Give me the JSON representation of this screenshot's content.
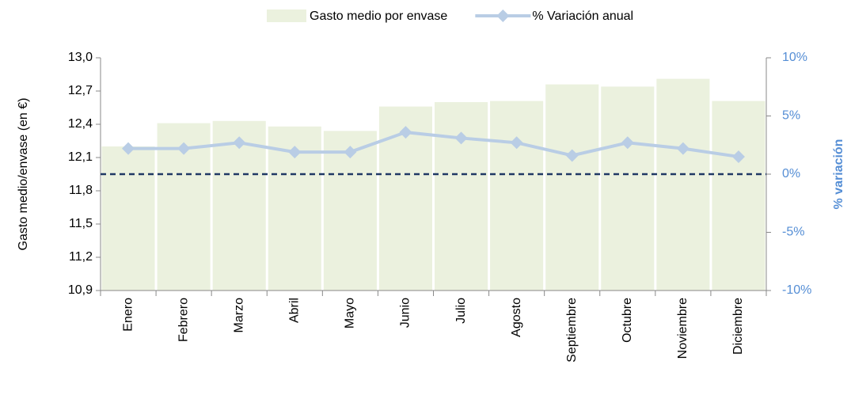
{
  "chart_data": {
    "type": "bar-line",
    "categories": [
      "Enero",
      "Febrero",
      "Marzo",
      "Abril",
      "Mayo",
      "Junio",
      "Julio",
      "Agosto",
      "Septiembre",
      "Octubre",
      "Noviembre",
      "Diciembre"
    ],
    "series": [
      {
        "name": "Gasto medio por envase",
        "type": "bar",
        "color": "#ebf1de",
        "axis": "y",
        "values": [
          12.2,
          12.41,
          12.43,
          12.38,
          12.34,
          12.56,
          12.6,
          12.61,
          12.76,
          12.74,
          12.81,
          12.61
        ]
      },
      {
        "name": "% Variación anual",
        "type": "line",
        "color": "#b9cde5",
        "axis": "y2",
        "values": [
          2.2,
          2.2,
          2.7,
          1.9,
          1.9,
          3.6,
          3.1,
          2.7,
          1.6,
          2.7,
          2.2,
          1.5
        ]
      }
    ],
    "ylabel": "Gasto medio/envase (en €)",
    "y2label": "% variación",
    "ylim": [
      10.9,
      13.0
    ],
    "yticks": [
      {
        "value": 10.9,
        "label": "10,9"
      },
      {
        "value": 11.2,
        "label": "11,2"
      },
      {
        "value": 11.5,
        "label": "11,5"
      },
      {
        "value": 11.8,
        "label": "11,8"
      },
      {
        "value": 12.1,
        "label": "12,1"
      },
      {
        "value": 12.4,
        "label": "12,4"
      },
      {
        "value": 12.7,
        "label": "12,7"
      },
      {
        "value": 13.0,
        "label": "13,0"
      }
    ],
    "y2lim": [
      -10,
      10
    ],
    "y2ticks": [
      {
        "value": -10,
        "label": "-10%"
      },
      {
        "value": -5,
        "label": "-5%"
      },
      {
        "value": 0,
        "label": "0%"
      },
      {
        "value": 5,
        "label": "5%"
      },
      {
        "value": 10,
        "label": "10%"
      }
    ],
    "reference_line_color": "#1f3864",
    "legend": "top"
  }
}
